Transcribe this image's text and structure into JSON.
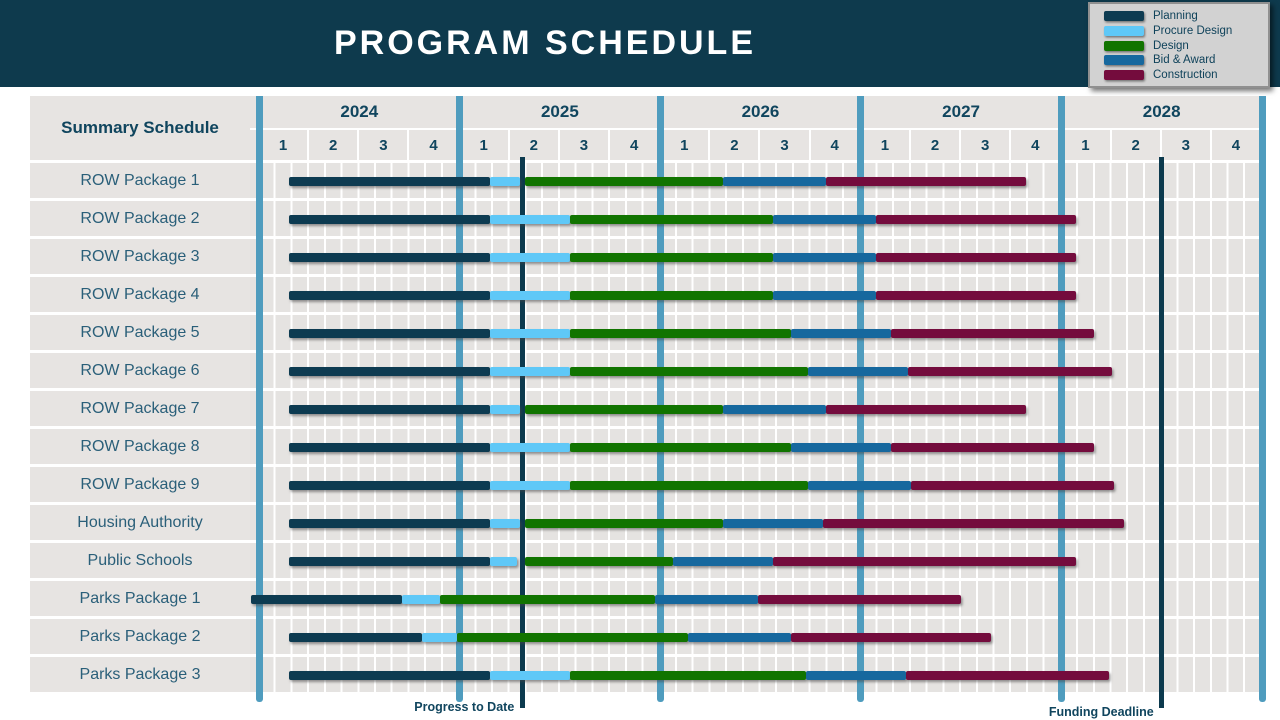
{
  "title": "PROGRAM SCHEDULE",
  "colors": {
    "page_bg": "#ffffff",
    "header_bg": "#0e3a4d",
    "cell_bg": "#e7e4e2",
    "grid_bg": "#e5e3e1",
    "gridline": "#ffffff",
    "year_divider": "#4f9cbe",
    "marker_line": "#0c3a4e",
    "heading_text": "#10455e",
    "row_label_text": "#2a5f79",
    "legend_bg": "#d2d2d2",
    "legend_border": "#909090",
    "legend_text": "#0f425a"
  },
  "legend": {
    "items": [
      {
        "phase": "planning",
        "label": "Planning",
        "color": "#0d3b51"
      },
      {
        "phase": "procure",
        "label": "Procure Design",
        "color": "#5fc8f7"
      },
      {
        "phase": "design",
        "label": "Design",
        "color": "#117400"
      },
      {
        "phase": "bid",
        "label": "Bid & Award",
        "color": "#16689e"
      },
      {
        "phase": "construction",
        "label": "Construction",
        "color": "#740c3d"
      }
    ]
  },
  "table": {
    "corner_label": "Summary Schedule"
  },
  "chart_data": {
    "type": "bar",
    "subtype": "gantt",
    "title": "PROGRAM SCHEDULE",
    "x_axis": {
      "unit": "quarters_since_2024_Q1",
      "years": [
        "2024",
        "2025",
        "2026",
        "2027",
        "2028"
      ],
      "quarter_labels": [
        "1",
        "2",
        "3",
        "4"
      ],
      "range": [
        0,
        20
      ],
      "grid": true
    },
    "phases": [
      "Planning",
      "Procure Design",
      "Design",
      "Bid & Award",
      "Construction"
    ],
    "markers": [
      {
        "id": "progress",
        "label": "Progress to Date",
        "t": 5.25
      },
      {
        "id": "funding",
        "label": "Funding Deadline",
        "t": 18
      }
    ],
    "rows": [
      {
        "label": "ROW Package 1",
        "segments": [
          [
            "planning",
            0.6,
            4.6
          ],
          [
            "procure",
            4.6,
            5.2
          ],
          [
            "design",
            5.3,
            9.25
          ],
          [
            "bid",
            9.25,
            11.3
          ],
          [
            "construction",
            11.3,
            15.3
          ]
        ]
      },
      {
        "label": "ROW Package 2",
        "segments": [
          [
            "planning",
            0.6,
            4.6
          ],
          [
            "procure",
            4.6,
            6.2
          ],
          [
            "design",
            6.2,
            10.25
          ],
          [
            "bid",
            10.25,
            12.3
          ],
          [
            "construction",
            12.3,
            16.3
          ]
        ]
      },
      {
        "label": "ROW Package 3",
        "segments": [
          [
            "planning",
            0.6,
            4.6
          ],
          [
            "procure",
            4.6,
            6.2
          ],
          [
            "design",
            6.2,
            10.25
          ],
          [
            "bid",
            10.25,
            12.3
          ],
          [
            "construction",
            12.3,
            16.3
          ]
        ]
      },
      {
        "label": "ROW Package 4",
        "segments": [
          [
            "planning",
            0.6,
            4.6
          ],
          [
            "procure",
            4.6,
            6.2
          ],
          [
            "design",
            6.2,
            10.25
          ],
          [
            "bid",
            10.25,
            12.3
          ],
          [
            "construction",
            12.3,
            16.3
          ]
        ]
      },
      {
        "label": "ROW Package 5",
        "segments": [
          [
            "planning",
            0.6,
            4.6
          ],
          [
            "procure",
            4.6,
            6.2
          ],
          [
            "design",
            6.2,
            10.6
          ],
          [
            "bid",
            10.6,
            12.6
          ],
          [
            "construction",
            12.6,
            16.65
          ]
        ]
      },
      {
        "label": "ROW Package 6",
        "segments": [
          [
            "planning",
            0.6,
            4.6
          ],
          [
            "procure",
            4.6,
            6.2
          ],
          [
            "design",
            6.2,
            10.95
          ],
          [
            "bid",
            10.95,
            12.95
          ],
          [
            "construction",
            12.95,
            17.0
          ]
        ]
      },
      {
        "label": "ROW Package 7",
        "segments": [
          [
            "planning",
            0.6,
            4.6
          ],
          [
            "procure",
            4.6,
            5.2
          ],
          [
            "design",
            5.3,
            9.25
          ],
          [
            "bid",
            9.25,
            11.3
          ],
          [
            "construction",
            11.3,
            15.3
          ]
        ]
      },
      {
        "label": "ROW Package 8",
        "segments": [
          [
            "planning",
            0.6,
            4.6
          ],
          [
            "procure",
            4.6,
            6.2
          ],
          [
            "design",
            6.2,
            10.6
          ],
          [
            "bid",
            10.6,
            12.6
          ],
          [
            "construction",
            12.6,
            16.65
          ]
        ]
      },
      {
        "label": "ROW Package 9",
        "segments": [
          [
            "planning",
            0.6,
            4.6
          ],
          [
            "procure",
            4.6,
            6.2
          ],
          [
            "design",
            6.2,
            10.95
          ],
          [
            "bid",
            10.95,
            13.0
          ],
          [
            "construction",
            13.0,
            17.05
          ]
        ]
      },
      {
        "label": "Housing Authority",
        "segments": [
          [
            "planning",
            0.6,
            4.6
          ],
          [
            "procure",
            4.6,
            5.2
          ],
          [
            "design",
            5.3,
            9.25
          ],
          [
            "bid",
            9.25,
            11.25
          ],
          [
            "construction",
            11.25,
            17.25
          ]
        ]
      },
      {
        "label": "Public Schools",
        "segments": [
          [
            "planning",
            0.6,
            4.6
          ],
          [
            "procure",
            4.6,
            5.15
          ],
          [
            "design",
            5.3,
            8.25
          ],
          [
            "bid",
            8.25,
            10.25
          ],
          [
            "construction",
            10.25,
            16.3
          ]
        ]
      },
      {
        "label": "Parks Package 1",
        "segments": [
          [
            "planning",
            -0.15,
            2.85
          ],
          [
            "procure",
            2.85,
            3.6
          ],
          [
            "design",
            3.6,
            7.9
          ],
          [
            "bid",
            7.9,
            9.95
          ],
          [
            "construction",
            9.95,
            14.0
          ]
        ]
      },
      {
        "label": "Parks Package 2",
        "segments": [
          [
            "planning",
            0.6,
            3.25
          ],
          [
            "procure",
            3.25,
            3.95
          ],
          [
            "design",
            3.95,
            8.55
          ],
          [
            "bid",
            8.55,
            10.6
          ],
          [
            "construction",
            10.6,
            14.6
          ]
        ]
      },
      {
        "label": "Parks Package 3",
        "segments": [
          [
            "planning",
            0.6,
            4.6
          ],
          [
            "procure",
            4.6,
            6.2
          ],
          [
            "design",
            6.2,
            10.9
          ],
          [
            "bid",
            10.9,
            12.9
          ],
          [
            "construction",
            12.9,
            16.95
          ]
        ]
      }
    ]
  }
}
